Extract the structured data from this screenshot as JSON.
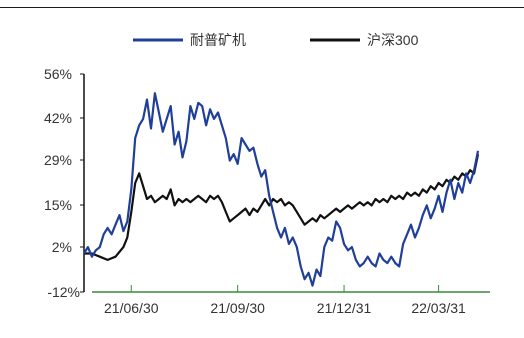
{
  "chart_data": {
    "type": "line",
    "title": "",
    "xlabel": "",
    "ylabel": "",
    "ylim": [
      -12,
      56
    ],
    "y_ticks": [
      "56%",
      "42%",
      "29%",
      "15%",
      "2%",
      "-12%"
    ],
    "y_tick_values": [
      56,
      42,
      29,
      15,
      2,
      -12
    ],
    "x_ticks": [
      "21/06/30",
      "21/09/30",
      "21/12/31",
      "22/03/31"
    ],
    "x_tick_positions": [
      0.12,
      0.39,
      0.66,
      0.9
    ],
    "grid": false,
    "legend": "top",
    "series": [
      {
        "name": "耐普矿机",
        "color": "#1f3f9a",
        "points": [
          [
            0.0,
            0
          ],
          [
            0.01,
            2
          ],
          [
            0.02,
            -1
          ],
          [
            0.03,
            1
          ],
          [
            0.04,
            2
          ],
          [
            0.05,
            6
          ],
          [
            0.06,
            8
          ],
          [
            0.07,
            6
          ],
          [
            0.08,
            9
          ],
          [
            0.09,
            12
          ],
          [
            0.1,
            7
          ],
          [
            0.11,
            10
          ],
          [
            0.12,
            20
          ],
          [
            0.13,
            36
          ],
          [
            0.14,
            40
          ],
          [
            0.15,
            42
          ],
          [
            0.16,
            48
          ],
          [
            0.17,
            39
          ],
          [
            0.18,
            50
          ],
          [
            0.19,
            44
          ],
          [
            0.2,
            38
          ],
          [
            0.21,
            42
          ],
          [
            0.22,
            46
          ],
          [
            0.23,
            34
          ],
          [
            0.24,
            38
          ],
          [
            0.25,
            30
          ],
          [
            0.26,
            35
          ],
          [
            0.27,
            46
          ],
          [
            0.28,
            42
          ],
          [
            0.29,
            47
          ],
          [
            0.3,
            46
          ],
          [
            0.31,
            40
          ],
          [
            0.32,
            45
          ],
          [
            0.33,
            42
          ],
          [
            0.34,
            44
          ],
          [
            0.35,
            40
          ],
          [
            0.36,
            36
          ],
          [
            0.37,
            29
          ],
          [
            0.38,
            31
          ],
          [
            0.39,
            28
          ],
          [
            0.4,
            36
          ],
          [
            0.41,
            34
          ],
          [
            0.42,
            32
          ],
          [
            0.43,
            33
          ],
          [
            0.44,
            28
          ],
          [
            0.45,
            24
          ],
          [
            0.46,
            26
          ],
          [
            0.47,
            18
          ],
          [
            0.48,
            13
          ],
          [
            0.49,
            8
          ],
          [
            0.5,
            5
          ],
          [
            0.51,
            8
          ],
          [
            0.52,
            3
          ],
          [
            0.53,
            5
          ],
          [
            0.54,
            2
          ],
          [
            0.55,
            -4
          ],
          [
            0.56,
            -8
          ],
          [
            0.57,
            -6
          ],
          [
            0.58,
            -10
          ],
          [
            0.59,
            -5
          ],
          [
            0.6,
            -7
          ],
          [
            0.61,
            2
          ],
          [
            0.62,
            5
          ],
          [
            0.63,
            4
          ],
          [
            0.64,
            10
          ],
          [
            0.65,
            8
          ],
          [
            0.66,
            3
          ],
          [
            0.67,
            1
          ],
          [
            0.68,
            2
          ],
          [
            0.69,
            -2
          ],
          [
            0.7,
            -4
          ],
          [
            0.71,
            -3
          ],
          [
            0.72,
            -1
          ],
          [
            0.73,
            -3
          ],
          [
            0.74,
            -4
          ],
          [
            0.75,
            0
          ],
          [
            0.76,
            -2
          ],
          [
            0.77,
            -3
          ],
          [
            0.78,
            -1
          ],
          [
            0.79,
            -3
          ],
          [
            0.8,
            -4
          ],
          [
            0.81,
            3
          ],
          [
            0.82,
            6
          ],
          [
            0.83,
            9
          ],
          [
            0.84,
            5
          ],
          [
            0.85,
            8
          ],
          [
            0.86,
            12
          ],
          [
            0.87,
            15
          ],
          [
            0.88,
            11
          ],
          [
            0.89,
            14
          ],
          [
            0.9,
            18
          ],
          [
            0.91,
            13
          ],
          [
            0.92,
            19
          ],
          [
            0.93,
            23
          ],
          [
            0.94,
            17
          ],
          [
            0.95,
            22
          ],
          [
            0.96,
            19
          ],
          [
            0.97,
            25
          ],
          [
            0.98,
            22
          ],
          [
            0.99,
            26
          ],
          [
            1.0,
            32
          ]
        ]
      },
      {
        "name": "沪深300",
        "color": "#111111",
        "points": [
          [
            0.0,
            0
          ],
          [
            0.02,
            0
          ],
          [
            0.04,
            -1
          ],
          [
            0.06,
            -2
          ],
          [
            0.08,
            -1
          ],
          [
            0.1,
            2
          ],
          [
            0.11,
            5
          ],
          [
            0.12,
            13
          ],
          [
            0.13,
            22
          ],
          [
            0.14,
            25
          ],
          [
            0.15,
            21
          ],
          [
            0.16,
            17
          ],
          [
            0.17,
            18
          ],
          [
            0.18,
            16
          ],
          [
            0.19,
            17
          ],
          [
            0.2,
            18
          ],
          [
            0.21,
            17
          ],
          [
            0.22,
            20
          ],
          [
            0.23,
            15
          ],
          [
            0.24,
            17
          ],
          [
            0.25,
            16
          ],
          [
            0.26,
            17
          ],
          [
            0.27,
            16
          ],
          [
            0.28,
            17
          ],
          [
            0.29,
            18
          ],
          [
            0.3,
            17
          ],
          [
            0.31,
            16
          ],
          [
            0.32,
            18
          ],
          [
            0.33,
            17
          ],
          [
            0.34,
            18
          ],
          [
            0.35,
            16
          ],
          [
            0.36,
            13
          ],
          [
            0.37,
            10
          ],
          [
            0.38,
            11
          ],
          [
            0.39,
            12
          ],
          [
            0.4,
            13
          ],
          [
            0.41,
            14
          ],
          [
            0.42,
            12
          ],
          [
            0.43,
            14
          ],
          [
            0.44,
            13
          ],
          [
            0.45,
            15
          ],
          [
            0.46,
            17
          ],
          [
            0.47,
            15
          ],
          [
            0.48,
            17
          ],
          [
            0.49,
            16
          ],
          [
            0.5,
            17
          ],
          [
            0.51,
            15
          ],
          [
            0.52,
            16
          ],
          [
            0.53,
            15
          ],
          [
            0.54,
            13
          ],
          [
            0.55,
            11
          ],
          [
            0.56,
            9
          ],
          [
            0.57,
            10
          ],
          [
            0.58,
            11
          ],
          [
            0.59,
            10
          ],
          [
            0.6,
            12
          ],
          [
            0.61,
            11
          ],
          [
            0.62,
            12
          ],
          [
            0.63,
            13
          ],
          [
            0.64,
            14
          ],
          [
            0.65,
            13
          ],
          [
            0.66,
            14
          ],
          [
            0.67,
            15
          ],
          [
            0.68,
            14
          ],
          [
            0.69,
            15
          ],
          [
            0.7,
            16
          ],
          [
            0.71,
            15
          ],
          [
            0.72,
            16
          ],
          [
            0.73,
            15
          ],
          [
            0.74,
            17
          ],
          [
            0.75,
            16
          ],
          [
            0.76,
            17
          ],
          [
            0.77,
            16
          ],
          [
            0.78,
            18
          ],
          [
            0.79,
            17
          ],
          [
            0.8,
            18
          ],
          [
            0.81,
            17
          ],
          [
            0.82,
            19
          ],
          [
            0.83,
            18
          ],
          [
            0.84,
            19
          ],
          [
            0.85,
            18
          ],
          [
            0.86,
            20
          ],
          [
            0.87,
            19
          ],
          [
            0.88,
            21
          ],
          [
            0.89,
            20
          ],
          [
            0.9,
            22
          ],
          [
            0.91,
            21
          ],
          [
            0.92,
            23
          ],
          [
            0.93,
            22
          ],
          [
            0.94,
            24
          ],
          [
            0.95,
            23
          ],
          [
            0.96,
            25
          ],
          [
            0.97,
            24
          ],
          [
            0.98,
            26
          ],
          [
            0.99,
            25
          ],
          [
            1.0,
            31
          ]
        ]
      }
    ]
  }
}
